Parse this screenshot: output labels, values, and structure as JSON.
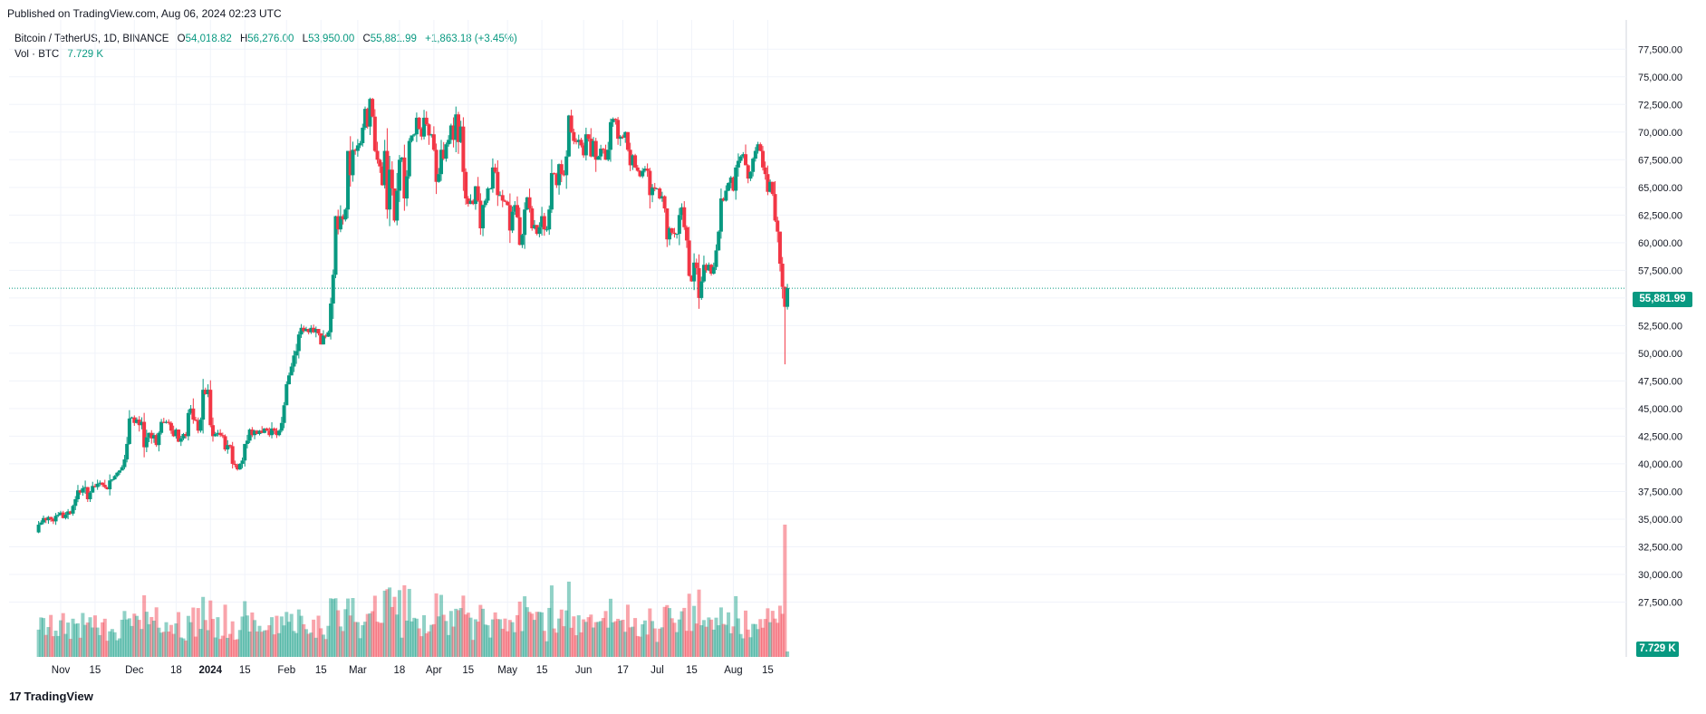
{
  "header": {
    "published": "Published on TradingView.com, Aug 06, 2024 02:23 UTC"
  },
  "legend": {
    "symbol": "Bitcoin / TetherUS, 1D, BINANCE",
    "open_label": "O",
    "open": "54,018.82",
    "high_label": "H",
    "high": "56,276.00",
    "low_label": "L",
    "low": "53,950.00",
    "close_label": "C",
    "close": "55,881.99",
    "change": "+1,863.18 (+3.45%)",
    "vol_label": "Vol · BTC",
    "vol_value": "7.729 K"
  },
  "price_tag": "55,881.99",
  "volume_tag": "7.729 K",
  "footer": {
    "brand": "TradingView",
    "logo_mark": "17"
  },
  "chart_data": {
    "type": "candlestick",
    "symbol": "Bitcoin / TetherUS",
    "interval": "1D",
    "exchange": "BINANCE",
    "last_price": 55881.99,
    "ylim": [
      25000,
      78750
    ],
    "y_ticks": [
      "27,500.00",
      "30,000.00",
      "32,500.00",
      "35,000.00",
      "37,500.00",
      "40,000.00",
      "42,500.00",
      "45,000.00",
      "47,500.00",
      "50,000.00",
      "52,500.00",
      "55,000.00",
      "57,500.00",
      "60,000.00",
      "62,500.00",
      "65,000.00",
      "67,500.00",
      "70,000.00",
      "72,500.00",
      "75,000.00",
      "77,500.00"
    ],
    "x_ticks": [
      {
        "label": "Nov",
        "day": 0
      },
      {
        "label": "15",
        "day": 14
      },
      {
        "label": "Dec",
        "day": 30
      },
      {
        "label": "18",
        "day": 47
      },
      {
        "label": "2024",
        "day": 61,
        "bold": true
      },
      {
        "label": "15",
        "day": 75
      },
      {
        "label": "Feb",
        "day": 92
      },
      {
        "label": "15",
        "day": 106
      },
      {
        "label": "Mar",
        "day": 121
      },
      {
        "label": "18",
        "day": 138
      },
      {
        "label": "Apr",
        "day": 152
      },
      {
        "label": "15",
        "day": 166
      },
      {
        "label": "May",
        "day": 182
      },
      {
        "label": "15",
        "day": 196
      },
      {
        "label": "Jun",
        "day": 213
      },
      {
        "label": "17",
        "day": 229
      },
      {
        "label": "Jul",
        "day": 243
      },
      {
        "label": "15",
        "day": 257
      },
      {
        "label": "Aug",
        "day": 274
      },
      {
        "label": "15",
        "day": 288
      }
    ],
    "first_day_offset": -9,
    "closes": [
      34500,
      34700,
      35100,
      34900,
      35200,
      35000,
      34800,
      35300,
      35400,
      35600,
      35100,
      35400,
      35700,
      35500,
      36200,
      36800,
      37600,
      37400,
      37800,
      37900,
      36800,
      37400,
      38000,
      37900,
      38200,
      38300,
      38100,
      37900,
      37700,
      38500,
      38600,
      38900,
      39200,
      39400,
      39700,
      40400,
      41800,
      44100,
      44200,
      43700,
      44000,
      43500,
      43800,
      41500,
      42400,
      42800,
      42300,
      42600,
      41700,
      42800,
      43800,
      43700,
      43800,
      43700,
      43000,
      42500,
      43100,
      42000,
      42300,
      42700,
      42500,
      44600,
      45000,
      44000,
      43900,
      43000,
      44000,
      46700,
      46300,
      46700,
      43500,
      42500,
      42700,
      42800,
      42600,
      42500,
      41300,
      41700,
      41600,
      40000,
      39900,
      39500,
      40000,
      40300,
      41800,
      42100,
      43100,
      42600,
      43000,
      42700,
      43000,
      42800,
      43200,
      43000,
      42600,
      43200,
      43000,
      42600,
      43000,
      43700,
      45300,
      47200,
      48000,
      48800,
      49800,
      50200,
      51700,
      52300,
      52000,
      52200,
      51900,
      52300,
      51900,
      52200,
      51800,
      50800,
      51600,
      51500,
      51900,
      54500,
      57100,
      62400,
      61200,
      62400,
      62100,
      63000,
      68300,
      66100,
      68400,
      68300,
      68800,
      69000,
      70400,
      72100,
      70500,
      73000,
      71400,
      68300,
      67500,
      66900,
      65200,
      68300,
      63000,
      66600,
      64900,
      62000,
      64700,
      67500,
      67700,
      64000,
      66000,
      69200,
      69700,
      69800,
      71300,
      70300,
      69600,
      71300,
      70700,
      69700,
      69800,
      68400,
      65500,
      66200,
      68400,
      67600,
      68900,
      69300,
      70600,
      69300,
      71600,
      69100,
      70500,
      66400,
      64000,
      63500,
      63800,
      63500,
      65100,
      63800,
      61300,
      63400,
      63800,
      64900,
      64900,
      66800,
      66400,
      64300,
      64300,
      63800,
      63700,
      63400,
      61100,
      62800,
      63400,
      62300,
      59800,
      60700,
      63000,
      64100,
      63100,
      61300,
      61600,
      60800,
      61400,
      62400,
      61200,
      61200,
      63000,
      66300,
      66200,
      65200,
      67100,
      66200,
      66100,
      67800,
      71500,
      70000,
      69200,
      69100,
      69300,
      68800,
      67900,
      69800,
      69400,
      67800,
      69200,
      67500,
      67800,
      68500,
      68400,
      67500,
      68400,
      70900,
      71200,
      71100,
      69400,
      69600,
      69500,
      70000,
      68400,
      67000,
      67900,
      66800,
      66500,
      66000,
      66500,
      66700,
      66500,
      64300,
      65000,
      64900,
      64900,
      64000,
      64200,
      63100,
      60300,
      61300,
      60900,
      60800,
      60800,
      62500,
      63200,
      61400,
      60200,
      57000,
      56500,
      58200,
      57700,
      55000,
      56500,
      58000,
      57500,
      58000,
      57200,
      57800,
      59300,
      61000,
      64000,
      63800,
      64700,
      65400,
      65900,
      64700,
      66800,
      67400,
      67800,
      68000,
      67000,
      65800,
      66400,
      67600,
      68300,
      68900,
      68300,
      66800,
      66200,
      64600,
      65500,
      64400,
      62000,
      61000,
      58100,
      56000,
      54200,
      55900
    ],
    "volume_max": 40000
  }
}
